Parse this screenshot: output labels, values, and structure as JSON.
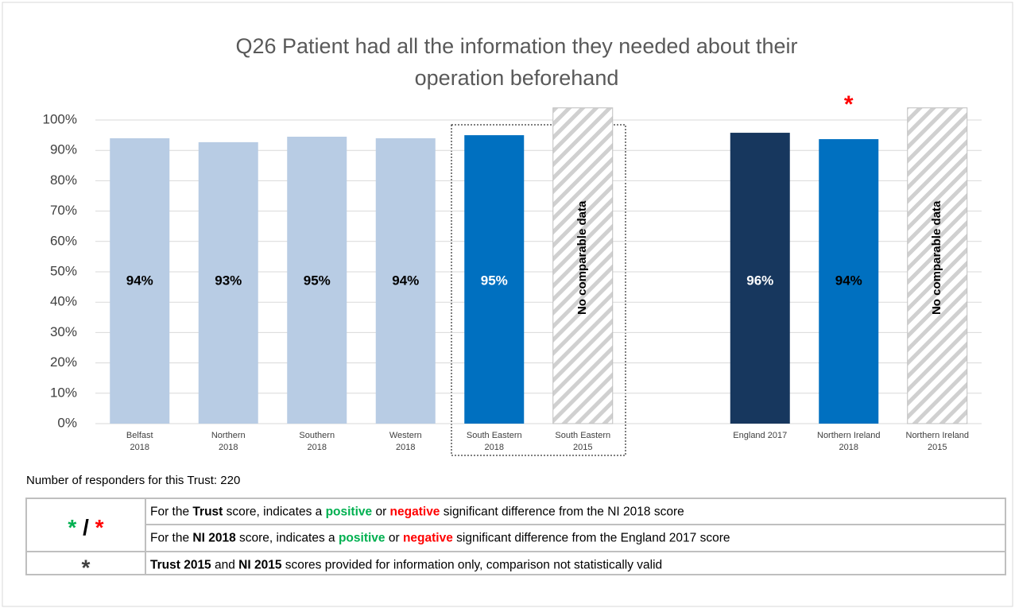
{
  "chart_data": {
    "type": "bar",
    "title": [
      "Q26 Patient had all the information they needed about their",
      "operation beforehand"
    ],
    "categories": [
      [
        "Belfast",
        "2018"
      ],
      [
        "Northern",
        "2018"
      ],
      [
        "Southern",
        "2018"
      ],
      [
        "Western",
        "2018"
      ],
      [
        "South Eastern",
        "2018"
      ],
      [
        "South Eastern",
        "2015"
      ],
      null,
      [
        "England 2017"
      ],
      [
        "Northern Ireland",
        "2018"
      ],
      [
        "Northern Ireland",
        "2015"
      ]
    ],
    "values": [
      94,
      92.7,
      94.5,
      94,
      95,
      null,
      null,
      95.8,
      93.7,
      null
    ],
    "value_labels": [
      "94%",
      "93%",
      "95%",
      "94%",
      "95%",
      null,
      null,
      "96%",
      "94%",
      null
    ],
    "colors": [
      "#b8cce4",
      "#b8cce4",
      "#b8cce4",
      "#b8cce4",
      "#0070c0",
      null,
      null,
      "#17375e",
      "#0070c0",
      null
    ],
    "label_colors": [
      "#000000",
      "#000000",
      "#000000",
      "#000000",
      "#ffffff",
      null,
      null,
      "#ffffff",
      "#000000",
      null
    ],
    "bar_notes": [
      null,
      null,
      null,
      null,
      null,
      "No comparable data",
      null,
      null,
      null,
      "No comparable data"
    ],
    "markers": [
      null,
      null,
      null,
      null,
      null,
      null,
      null,
      null,
      "*",
      null
    ],
    "marker_color": "#ff0000",
    "ylim": [
      0,
      104
    ],
    "yticks": [
      {
        "value": 0,
        "label": "0%"
      },
      {
        "value": 10,
        "label": "10%"
      },
      {
        "value": 20,
        "label": "20%"
      },
      {
        "value": 30,
        "label": "30%"
      },
      {
        "value": 40,
        "label": "40%"
      },
      {
        "value": 50,
        "label": "50%"
      },
      {
        "value": 60,
        "label": "60%"
      },
      {
        "value": 70,
        "label": "70%"
      },
      {
        "value": 80,
        "label": "80%"
      },
      {
        "value": 90,
        "label": "90%"
      },
      {
        "value": 100,
        "label": "100%"
      }
    ],
    "grid": true
  },
  "footer": "Number of responders for this Trust: 220",
  "key": [
    {
      "symbol": [
        {
          "text": "*",
          "color": "#00b050"
        },
        {
          "text": " / "
        },
        {
          "text": "*",
          "color": "#ff0000"
        }
      ],
      "lines": [
        [
          {
            "text": "For the "
          },
          {
            "text": "Trust",
            "bold": true
          },
          {
            "text": " score, indicates a "
          },
          {
            "text": "positive",
            "bold": true,
            "color": "#00b050"
          },
          {
            "text": " or "
          },
          {
            "text": "negative",
            "bold": true,
            "color": "#ff0000"
          },
          {
            "text": " significant difference from the NI 2018 score"
          }
        ],
        [
          {
            "text": "For the "
          },
          {
            "text": "NI 2018",
            "bold": true
          },
          {
            "text": " score, indicates a "
          },
          {
            "text": "positive",
            "bold": true,
            "color": "#00b050"
          },
          {
            "text": " or "
          },
          {
            "text": "negative",
            "bold": true,
            "color": "#ff0000"
          },
          {
            "text": " significant difference from the England 2017 score"
          }
        ]
      ]
    },
    {
      "symbol": [
        {
          "text": "*",
          "color": "#404040"
        }
      ],
      "lines": [
        [
          {
            "text": "Trust 2015",
            "bold": true
          },
          {
            "text": " and  "
          },
          {
            "text": "NI 2015",
            "bold": true
          },
          {
            "text": " scores provided for information only, comparison not statistically valid"
          }
        ]
      ]
    }
  ]
}
